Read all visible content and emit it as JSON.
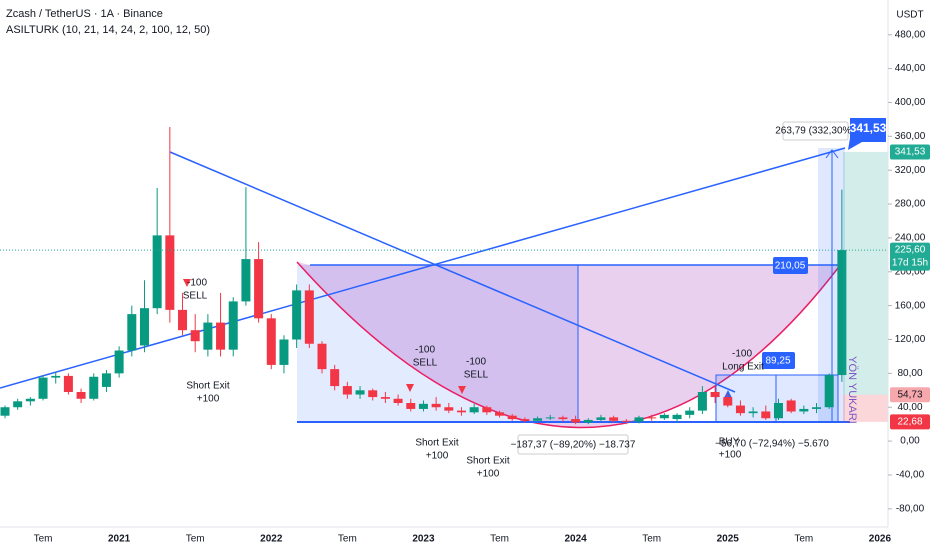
{
  "header": {
    "title": "Zcash / TetherUS · 1A · Binance",
    "indicator": "ASILTURK (10, 21, 14, 24, 2, 100, 12, 50)"
  },
  "chart_data": {
    "type": "candlestick",
    "categories": [
      null,
      null,
      null,
      "Tem",
      null,
      null,
      null,
      null,
      null,
      "2021",
      null,
      null,
      null,
      null,
      null,
      "Tem",
      null,
      null,
      null,
      null,
      null,
      "2022",
      null,
      null,
      null,
      null,
      null,
      "Tem",
      null,
      null,
      null,
      null,
      null,
      "2023",
      null,
      null,
      null,
      null,
      null,
      "Tem",
      null,
      null,
      null,
      null,
      null,
      "2024",
      null,
      null,
      null,
      null,
      null,
      "Tem",
      null,
      null,
      null,
      null,
      null,
      "2025",
      null,
      null,
      null,
      null,
      null,
      "Tem",
      null,
      null,
      null,
      null,
      null,
      "2026"
    ],
    "open": [
      30,
      40,
      47,
      50,
      75,
      77,
      58,
      50,
      64,
      80,
      107,
      113,
      157,
      243,
      155,
      131,
      108,
      140,
      108,
      165,
      215,
      145,
      90,
      120,
      178,
      115,
      85,
      65,
      55,
      60,
      52,
      50,
      45,
      38,
      44,
      40,
      36,
      34,
      40,
      34,
      30,
      26,
      24,
      27,
      28,
      26,
      22,
      25,
      28,
      24,
      23,
      28,
      27,
      26,
      31,
      36,
      58,
      52,
      42,
      33,
      35,
      27,
      48,
      35,
      38,
      40,
      78,
      null,
      null,
      null
    ],
    "high": [
      42,
      50,
      52,
      78,
      82,
      80,
      62,
      80,
      84,
      112,
      160,
      190,
      299,
      371,
      175,
      150,
      150,
      175,
      170,
      300,
      235,
      150,
      125,
      185,
      185,
      118,
      90,
      70,
      65,
      62,
      58,
      55,
      50,
      48,
      52,
      45,
      40,
      44,
      42,
      36,
      32,
      28,
      29,
      31,
      30,
      30,
      27,
      31,
      30,
      26,
      30,
      31,
      33,
      33,
      40,
      65,
      65,
      56,
      48,
      40,
      42,
      50,
      50,
      42,
      45,
      80,
      297,
      null,
      null,
      null
    ],
    "low": [
      27,
      37,
      42,
      48,
      68,
      55,
      45,
      48,
      58,
      75,
      100,
      105,
      150,
      140,
      125,
      105,
      100,
      100,
      100,
      160,
      140,
      85,
      80,
      110,
      110,
      80,
      60,
      50,
      50,
      48,
      45,
      42,
      35,
      35,
      36,
      33,
      30,
      32,
      31,
      28,
      24,
      22,
      22,
      25,
      23,
      20,
      20,
      23,
      22,
      20,
      21,
      24,
      25,
      22,
      27,
      32,
      45,
      40,
      30,
      28,
      25,
      25,
      33,
      32,
      33,
      38,
      70,
      null,
      null,
      null
    ],
    "close": [
      40,
      47,
      50,
      75,
      77,
      58,
      50,
      76,
      80,
      107,
      150,
      157,
      243,
      155,
      131,
      118,
      140,
      108,
      165,
      215,
      145,
      90,
      120,
      178,
      115,
      85,
      65,
      55,
      60,
      52,
      50,
      45,
      38,
      44,
      40,
      36,
      34,
      40,
      34,
      30,
      26,
      24,
      27,
      28,
      26,
      22,
      25,
      28,
      24,
      23,
      28,
      27,
      31,
      31,
      36,
      58,
      52,
      42,
      33,
      35,
      27,
      45,
      35,
      38,
      40,
      78,
      225.6,
      null,
      null,
      null
    ],
    "up_color": "#089981",
    "down_color": "#f23645",
    "ylim": [
      -105,
      521
    ],
    "yticks": [
      {
        "value": 480,
        "label": "480,00"
      },
      {
        "value": 440,
        "label": "440,00"
      },
      {
        "value": 400,
        "label": "400,00"
      },
      {
        "value": 360,
        "label": "360,00"
      },
      {
        "value": 320,
        "label": "320,00"
      },
      {
        "value": 280,
        "label": "280,00"
      },
      {
        "value": 240,
        "label": "240,00"
      },
      {
        "value": 200,
        "label": "200,00"
      },
      {
        "value": 160,
        "label": "160,00"
      },
      {
        "value": 120,
        "label": "120,00"
      },
      {
        "value": 80,
        "label": "80,00"
      },
      {
        "value": 40,
        "label": "40,00"
      },
      {
        "value": 0,
        "label": "0,00"
      },
      {
        "value": -40,
        "label": "-40,00"
      },
      {
        "value": -80,
        "label": "-80,00"
      }
    ],
    "y_axis_unit": "USDT",
    "price_labels": [
      {
        "value": 341.53,
        "label": "341,53",
        "color": "#22ab94"
      },
      {
        "value": 225.6,
        "label": "225,60",
        "color": "#22ab94",
        "sub": "17d 15h"
      },
      {
        "value": 54.73,
        "label": "54,73",
        "color": "#f7a8ad"
      },
      {
        "value": 22.68,
        "label": "22,68",
        "color": "#f23645"
      }
    ],
    "annotations": [
      "-100",
      "SELL",
      "Short Exit",
      "+100",
      "-100",
      "SELL",
      "Short Exit",
      "+100",
      "-100",
      "SELL",
      "Short Exit",
      "+100",
      "−187,37 (−89,20%) −18.737",
      "263,79 (332,30%)",
      "341,53",
      "210,05",
      "89,25",
      "-100",
      "Long Exit",
      "BUY",
      "−56,70 (−72,94%) −5.670",
      "+100",
      "YÖN YUKARI"
    ]
  }
}
